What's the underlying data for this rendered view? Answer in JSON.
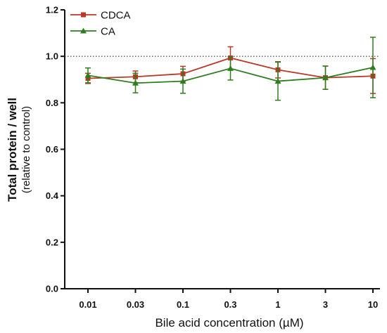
{
  "chart_data": {
    "type": "line",
    "title": "",
    "xlabel": "Bile acid concentration (µM)",
    "ylabel": "Total protein / well",
    "ylabel_sub": "(relative to control)",
    "categories": [
      "0.01",
      "0.03",
      "0.1",
      "0.3",
      "1",
      "3",
      "10"
    ],
    "ylim": [
      0,
      1.2
    ],
    "yticks": [
      "0.0",
      "0.2",
      "0.4",
      "0.6",
      "0.8",
      "1.0",
      "1.2"
    ],
    "yticks_values": [
      0,
      0.2,
      0.4,
      0.6,
      0.8,
      1.0,
      1.2
    ],
    "reference_line": 1.0,
    "grid": false,
    "legend_position": "top-left",
    "series": [
      {
        "name": "CDCA",
        "marker": "square",
        "color": "#b83a26",
        "values": [
          0.905,
          0.912,
          0.925,
          0.993,
          0.942,
          0.908,
          0.915
        ],
        "errors": [
          0.022,
          0.025,
          0.032,
          0.048,
          0.035,
          0.05,
          0.075
        ]
      },
      {
        "name": "CA",
        "marker": "triangle",
        "color": "#2e7d1e",
        "values": [
          0.918,
          0.885,
          0.893,
          0.948,
          0.893,
          0.908,
          0.952
        ],
        "errors": [
          0.032,
          0.042,
          0.052,
          0.05,
          0.082,
          0.05,
          0.13
        ]
      }
    ]
  }
}
